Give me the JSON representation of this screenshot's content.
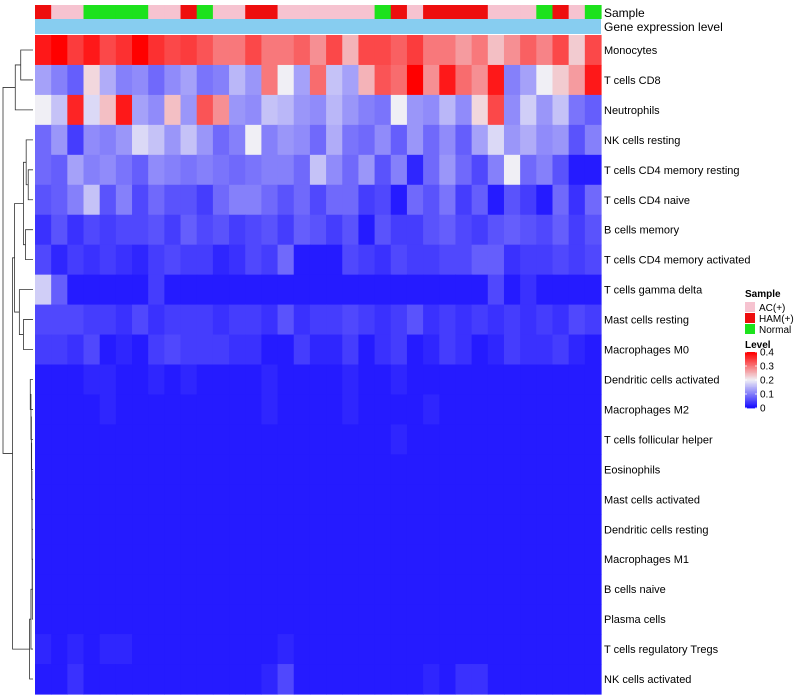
{
  "chart_data": {
    "type": "heatmap",
    "title": "",
    "annotation_labels": [
      "Sample",
      "Gene expression level"
    ],
    "samples": [
      "HAM(+)",
      "AC(+)",
      "AC(+)",
      "Normal",
      "Normal",
      "Normal",
      "Normal",
      "AC(+)",
      "AC(+)",
      "HAM(+)",
      "Normal",
      "AC(+)",
      "AC(+)",
      "HAM(+)",
      "HAM(+)",
      "AC(+)",
      "AC(+)",
      "AC(+)",
      "AC(+)",
      "AC(+)",
      "AC(+)",
      "Normal",
      "HAM(+)",
      "AC(+)",
      "HAM(+)",
      "HAM(+)",
      "HAM(+)",
      "HAM(+)",
      "AC(+)",
      "AC(+)",
      "AC(+)",
      "Normal",
      "HAM(+)",
      "AC(+)",
      "Normal"
    ],
    "sample_colors": {
      "AC(+)": "#f6c3d0",
      "HAM(+)": "#ee0e0e",
      "Normal": "#1de21d"
    },
    "gene_expression_bar_color": "#87cdf0",
    "rows": [
      "Monocytes",
      "T cells CD8",
      "Neutrophils",
      "NK cells resting",
      "T cells CD4 memory resting",
      "T cells CD4 naive",
      "B cells memory",
      "T cells CD4 memory activated",
      "T cells gamma delta",
      "Mast cells resting",
      "Macrophages M0",
      "Dendritic cells activated",
      "Macrophages M2",
      "T cells follicular helper",
      "Eosinophils",
      "Mast cells activated",
      "Dendritic cells resting",
      "Macrophages M1",
      "B cells naive",
      "Plasma cells",
      "T cells regulatory  Tregs",
      "NK cells activated"
    ],
    "values": [
      [
        0.38,
        0.4,
        0.35,
        0.38,
        0.34,
        0.36,
        0.4,
        0.36,
        0.34,
        0.35,
        0.33,
        0.3,
        0.3,
        0.34,
        0.3,
        0.3,
        0.32,
        0.28,
        0.34,
        0.25,
        0.34,
        0.34,
        0.32,
        0.35,
        0.3,
        0.3,
        0.27,
        0.3,
        0.24,
        0.28,
        0.32,
        0.29,
        0.34,
        0.23,
        0.34
      ],
      [
        0.13,
        0.1,
        0.07,
        0.22,
        0.14,
        0.1,
        0.11,
        0.08,
        0.11,
        0.13,
        0.09,
        0.1,
        0.15,
        0.12,
        0.3,
        0.2,
        0.13,
        0.31,
        0.16,
        0.13,
        0.25,
        0.33,
        0.31,
        0.4,
        0.28,
        0.38,
        0.31,
        0.28,
        0.38,
        0.1,
        0.13,
        0.2,
        0.23,
        0.27,
        0.38
      ],
      [
        0.2,
        0.16,
        0.37,
        0.18,
        0.24,
        0.38,
        0.13,
        0.11,
        0.24,
        0.12,
        0.33,
        0.28,
        0.12,
        0.11,
        0.16,
        0.15,
        0.12,
        0.11,
        0.15,
        0.12,
        0.1,
        0.09,
        0.2,
        0.12,
        0.11,
        0.15,
        0.11,
        0.22,
        0.34,
        0.11,
        0.17,
        0.12,
        0.16,
        0.09,
        0.07
      ],
      [
        0.08,
        0.12,
        0.04,
        0.11,
        0.1,
        0.12,
        0.18,
        0.16,
        0.12,
        0.16,
        0.12,
        0.08,
        0.1,
        0.2,
        0.1,
        0.12,
        0.11,
        0.08,
        0.14,
        0.09,
        0.08,
        0.11,
        0.07,
        0.12,
        0.08,
        0.11,
        0.07,
        0.13,
        0.18,
        0.12,
        0.14,
        0.11,
        0.12,
        0.06,
        0.1
      ],
      [
        0.08,
        0.07,
        0.13,
        0.1,
        0.11,
        0.09,
        0.07,
        0.11,
        0.1,
        0.09,
        0.1,
        0.09,
        0.08,
        0.09,
        0.1,
        0.1,
        0.08,
        0.16,
        0.11,
        0.08,
        0.12,
        0.06,
        0.1,
        0.02,
        0.08,
        0.12,
        0.08,
        0.05,
        0.1,
        0.2,
        0.08,
        0.1,
        0.06,
        0.01,
        0.01
      ],
      [
        0.06,
        0.07,
        0.1,
        0.16,
        0.06,
        0.1,
        0.05,
        0.08,
        0.06,
        0.06,
        0.04,
        0.08,
        0.1,
        0.1,
        0.08,
        0.06,
        0.08,
        0.05,
        0.08,
        0.08,
        0.04,
        0.05,
        0.01,
        0.08,
        0.06,
        0.09,
        0.04,
        0.07,
        0.01,
        0.06,
        0.04,
        0.01,
        0.08,
        0.03,
        0.08
      ],
      [
        0.03,
        0.06,
        0.03,
        0.05,
        0.04,
        0.05,
        0.05,
        0.06,
        0.04,
        0.07,
        0.05,
        0.06,
        0.04,
        0.05,
        0.06,
        0.04,
        0.07,
        0.06,
        0.04,
        0.06,
        0.01,
        0.06,
        0.04,
        0.04,
        0.06,
        0.07,
        0.05,
        0.04,
        0.06,
        0.07,
        0.06,
        0.05,
        0.07,
        0.04,
        0.06
      ],
      [
        0.05,
        0.02,
        0.04,
        0.03,
        0.04,
        0.03,
        0.02,
        0.04,
        0.05,
        0.04,
        0.04,
        0.02,
        0.03,
        0.05,
        0.04,
        0.08,
        0.01,
        0.01,
        0.01,
        0.05,
        0.04,
        0.03,
        0.05,
        0.04,
        0.04,
        0.05,
        0.05,
        0.07,
        0.07,
        0.03,
        0.04,
        0.04,
        0.05,
        0.04,
        0.05
      ],
      [
        0.17,
        0.07,
        0.01,
        0.01,
        0.01,
        0.01,
        0.01,
        0.04,
        0.01,
        0.01,
        0.01,
        0.01,
        0.01,
        0.01,
        0.01,
        0.01,
        0.01,
        0.01,
        0.01,
        0.01,
        0.01,
        0.01,
        0.01,
        0.01,
        0.01,
        0.01,
        0.01,
        0.01,
        0.05,
        0.01,
        0.03,
        0.01,
        0.01,
        0.01,
        0.01
      ],
      [
        0.05,
        0.05,
        0.05,
        0.04,
        0.04,
        0.03,
        0.05,
        0.03,
        0.04,
        0.04,
        0.04,
        0.03,
        0.04,
        0.04,
        0.03,
        0.06,
        0.03,
        0.04,
        0.04,
        0.05,
        0.04,
        0.03,
        0.04,
        0.06,
        0.03,
        0.04,
        0.03,
        0.04,
        0.03,
        0.04,
        0.03,
        0.04,
        0.03,
        0.05,
        0.04
      ],
      [
        0.04,
        0.04,
        0.03,
        0.05,
        0.01,
        0.02,
        0.01,
        0.04,
        0.05,
        0.04,
        0.04,
        0.04,
        0.03,
        0.03,
        0.01,
        0.01,
        0.04,
        0.02,
        0.02,
        0.04,
        0.01,
        0.03,
        0.04,
        0.01,
        0.02,
        0.04,
        0.03,
        0.01,
        0.02,
        0.04,
        0.03,
        0.03,
        0.04,
        0.02,
        0.01
      ],
      [
        0.01,
        0.01,
        0.01,
        0.02,
        0.02,
        0.01,
        0.01,
        0.02,
        0.01,
        0.02,
        0.01,
        0.01,
        0.01,
        0.01,
        0.02,
        0.01,
        0.01,
        0.01,
        0.01,
        0.02,
        0.01,
        0.01,
        0.02,
        0.01,
        0.01,
        0.01,
        0.01,
        0.01,
        0.01,
        0.01,
        0.01,
        0.01,
        0.01,
        0.01,
        0.01
      ],
      [
        0.01,
        0.01,
        0.01,
        0.01,
        0.02,
        0.01,
        0.01,
        0.01,
        0.01,
        0.01,
        0.01,
        0.01,
        0.01,
        0.01,
        0.02,
        0.01,
        0.01,
        0.01,
        0.01,
        0.02,
        0.01,
        0.01,
        0.01,
        0.01,
        0.02,
        0.01,
        0.01,
        0.01,
        0.01,
        0.01,
        0.01,
        0.01,
        0.01,
        0.01,
        0.01
      ],
      [
        0.01,
        0.01,
        0.01,
        0.01,
        0.01,
        0.01,
        0.01,
        0.01,
        0.01,
        0.01,
        0.01,
        0.01,
        0.01,
        0.01,
        0.01,
        0.01,
        0.01,
        0.01,
        0.01,
        0.01,
        0.01,
        0.01,
        0.02,
        0.01,
        0.01,
        0.01,
        0.01,
        0.01,
        0.01,
        0.01,
        0.01,
        0.01,
        0.01,
        0.01,
        0.01
      ],
      [
        0.01,
        0.01,
        0.01,
        0.01,
        0.01,
        0.01,
        0.01,
        0.01,
        0.01,
        0.01,
        0.01,
        0.01,
        0.01,
        0.01,
        0.01,
        0.01,
        0.01,
        0.01,
        0.01,
        0.01,
        0.01,
        0.01,
        0.01,
        0.01,
        0.01,
        0.01,
        0.01,
        0.01,
        0.01,
        0.01,
        0.01,
        0.01,
        0.01,
        0.01,
        0.01
      ],
      [
        0.01,
        0.01,
        0.01,
        0.01,
        0.01,
        0.01,
        0.01,
        0.01,
        0.01,
        0.01,
        0.01,
        0.01,
        0.01,
        0.01,
        0.01,
        0.01,
        0.01,
        0.01,
        0.01,
        0.01,
        0.01,
        0.01,
        0.01,
        0.01,
        0.01,
        0.01,
        0.01,
        0.01,
        0.01,
        0.01,
        0.01,
        0.01,
        0.01,
        0.01,
        0.01
      ],
      [
        0.01,
        0.01,
        0.01,
        0.01,
        0.01,
        0.01,
        0.01,
        0.01,
        0.01,
        0.01,
        0.01,
        0.01,
        0.01,
        0.01,
        0.01,
        0.01,
        0.01,
        0.01,
        0.01,
        0.01,
        0.01,
        0.01,
        0.01,
        0.01,
        0.01,
        0.01,
        0.01,
        0.01,
        0.01,
        0.01,
        0.01,
        0.01,
        0.01,
        0.01,
        0.01
      ],
      [
        0.01,
        0.01,
        0.01,
        0.01,
        0.01,
        0.01,
        0.01,
        0.01,
        0.01,
        0.01,
        0.01,
        0.01,
        0.01,
        0.01,
        0.01,
        0.01,
        0.01,
        0.01,
        0.01,
        0.01,
        0.01,
        0.01,
        0.01,
        0.01,
        0.01,
        0.01,
        0.01,
        0.01,
        0.01,
        0.01,
        0.01,
        0.01,
        0.01,
        0.01,
        0.01
      ],
      [
        0.01,
        0.01,
        0.01,
        0.01,
        0.01,
        0.01,
        0.01,
        0.01,
        0.01,
        0.01,
        0.01,
        0.01,
        0.01,
        0.01,
        0.01,
        0.01,
        0.01,
        0.01,
        0.01,
        0.01,
        0.01,
        0.01,
        0.01,
        0.01,
        0.01,
        0.01,
        0.01,
        0.01,
        0.01,
        0.01,
        0.01,
        0.01,
        0.01,
        0.01,
        0.01
      ],
      [
        0.01,
        0.01,
        0.01,
        0.01,
        0.01,
        0.01,
        0.01,
        0.01,
        0.01,
        0.01,
        0.01,
        0.01,
        0.01,
        0.01,
        0.01,
        0.01,
        0.01,
        0.01,
        0.01,
        0.01,
        0.01,
        0.01,
        0.01,
        0.01,
        0.01,
        0.01,
        0.01,
        0.01,
        0.01,
        0.01,
        0.01,
        0.01,
        0.01,
        0.01,
        0.01
      ],
      [
        0.02,
        0.01,
        0.02,
        0.01,
        0.02,
        0.02,
        0.01,
        0.01,
        0.01,
        0.01,
        0.01,
        0.01,
        0.01,
        0.01,
        0.01,
        0.02,
        0.01,
        0.01,
        0.01,
        0.01,
        0.01,
        0.01,
        0.01,
        0.01,
        0.01,
        0.01,
        0.01,
        0.01,
        0.01,
        0.01,
        0.01,
        0.01,
        0.01,
        0.01,
        0.01
      ],
      [
        0.01,
        0.01,
        0.03,
        0.01,
        0.01,
        0.01,
        0.01,
        0.01,
        0.01,
        0.01,
        0.01,
        0.01,
        0.01,
        0.01,
        0.02,
        0.05,
        0.01,
        0.01,
        0.01,
        0.01,
        0.01,
        0.01,
        0.01,
        0.01,
        0.02,
        0.01,
        0.03,
        0.03,
        0.01,
        0.01,
        0.01,
        0.01,
        0.01,
        0.01,
        0.01
      ]
    ],
    "color_scale": {
      "low": "#1a10ff",
      "mid": "#f0eff5",
      "high": "#ff0000",
      "min": 0,
      "mid_value": 0.2,
      "max": 0.4
    },
    "legend": {
      "sample_title": "Sample",
      "sample_items": [
        {
          "label": "AC(+)",
          "color": "#f6c3d0"
        },
        {
          "label": "HAM(+)",
          "color": "#ee0e0e"
        },
        {
          "label": "Normal",
          "color": "#1de21d"
        }
      ],
      "level_title": "Level",
      "level_ticks": [
        "0.4",
        "0.3",
        "0.2",
        "0.1",
        "0"
      ],
      "level_tick_values": [
        0.4,
        0.3,
        0.2,
        0.1,
        0
      ]
    },
    "dendrogram": [
      {
        "a": "row:0",
        "b": "row:1",
        "h": 0.9
      },
      {
        "a": "node:0",
        "b": "row:2",
        "h": 1.3
      },
      {
        "a": "row:4",
        "b": "row:5",
        "h": 0.35
      },
      {
        "a": "node:2",
        "b": "row:3",
        "h": 0.5
      },
      {
        "a": "row:6",
        "b": "row:7",
        "h": 0.55
      },
      {
        "a": "node:3",
        "b": "node:4",
        "h": 0.7
      },
      {
        "a": "row:9",
        "b": "row:10",
        "h": 0.7
      },
      {
        "a": "row:8",
        "b": "node:6",
        "h": 1.0
      },
      {
        "a": "node:5",
        "b": "node:7",
        "h": 1.35
      },
      {
        "a": "row:11",
        "b": "row:12",
        "h": 0.2
      },
      {
        "a": "node:9",
        "b": "row:13",
        "h": 0.15
      },
      {
        "a": "node:10",
        "b": "row:14",
        "h": 0.12
      },
      {
        "a": "node:11",
        "b": "row:15",
        "h": 0.1
      },
      {
        "a": "node:12",
        "b": "row:16",
        "h": 0.08
      },
      {
        "a": "node:13",
        "b": "row:17",
        "h": 0.07
      },
      {
        "a": "node:14",
        "b": "row:18",
        "h": 0.06
      },
      {
        "a": "node:15",
        "b": "row:19",
        "h": 0.05
      },
      {
        "a": "node:16",
        "b": "row:20",
        "h": 0.15
      },
      {
        "a": "node:17",
        "b": "row:21",
        "h": 0.25
      },
      {
        "a": "node:8",
        "b": "node:18",
        "h": 1.5
      },
      {
        "a": "node:1",
        "b": "node:19",
        "h": 2.2
      }
    ]
  }
}
